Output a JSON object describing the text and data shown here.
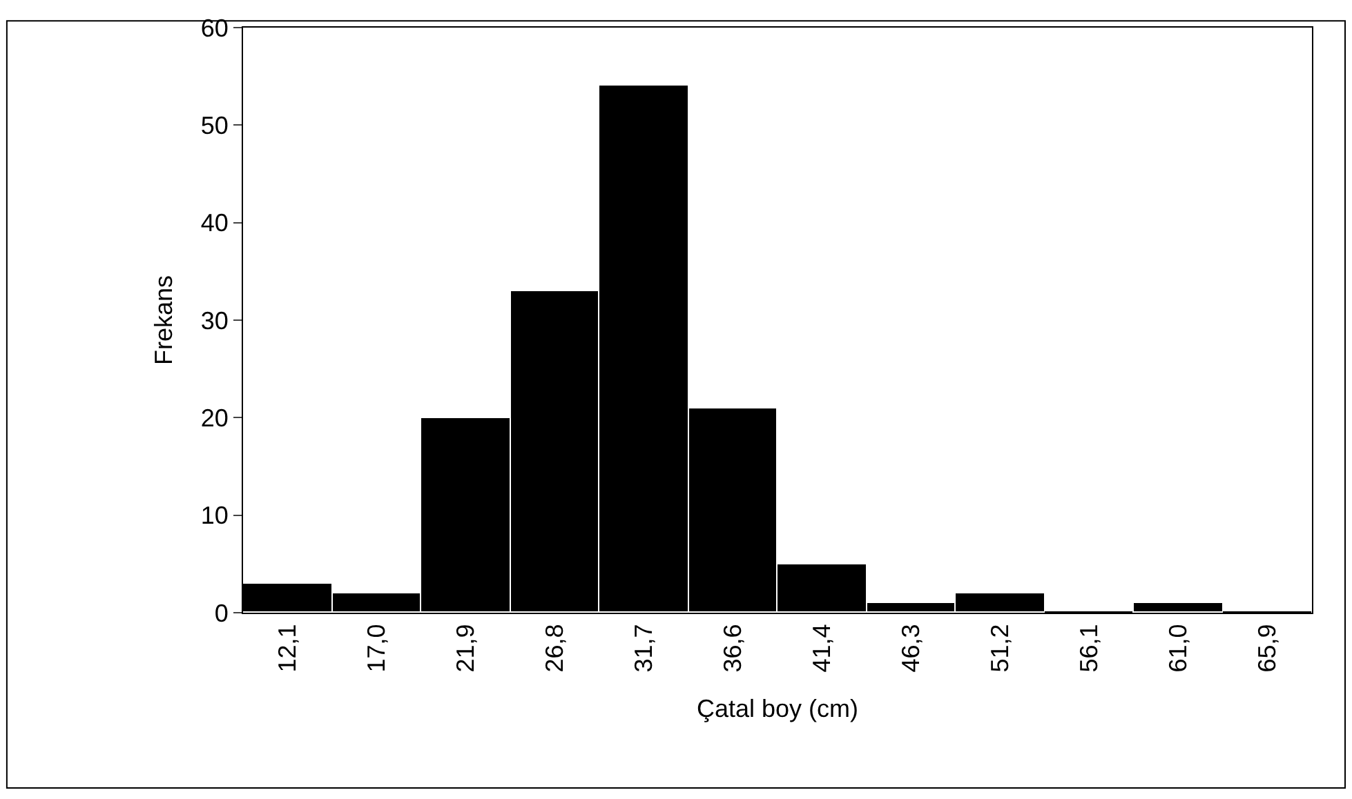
{
  "chart_data": {
    "type": "bar",
    "xlabel": "Çatal boy (cm)",
    "ylabel": "Frekans",
    "categories": [
      "12,1",
      "17,0",
      "21,9",
      "26,8",
      "31,7",
      "36,6",
      "41,4",
      "46,3",
      "51,2",
      "56,1",
      "61,0",
      "65,9"
    ],
    "values": [
      3,
      2,
      20,
      33,
      54,
      21,
      5,
      1,
      2,
      0,
      1,
      0
    ],
    "color": "#000000",
    "ylim": [
      0,
      60
    ],
    "yticks": [
      0,
      10,
      20,
      30,
      40,
      50,
      60
    ],
    "grid": false
  }
}
